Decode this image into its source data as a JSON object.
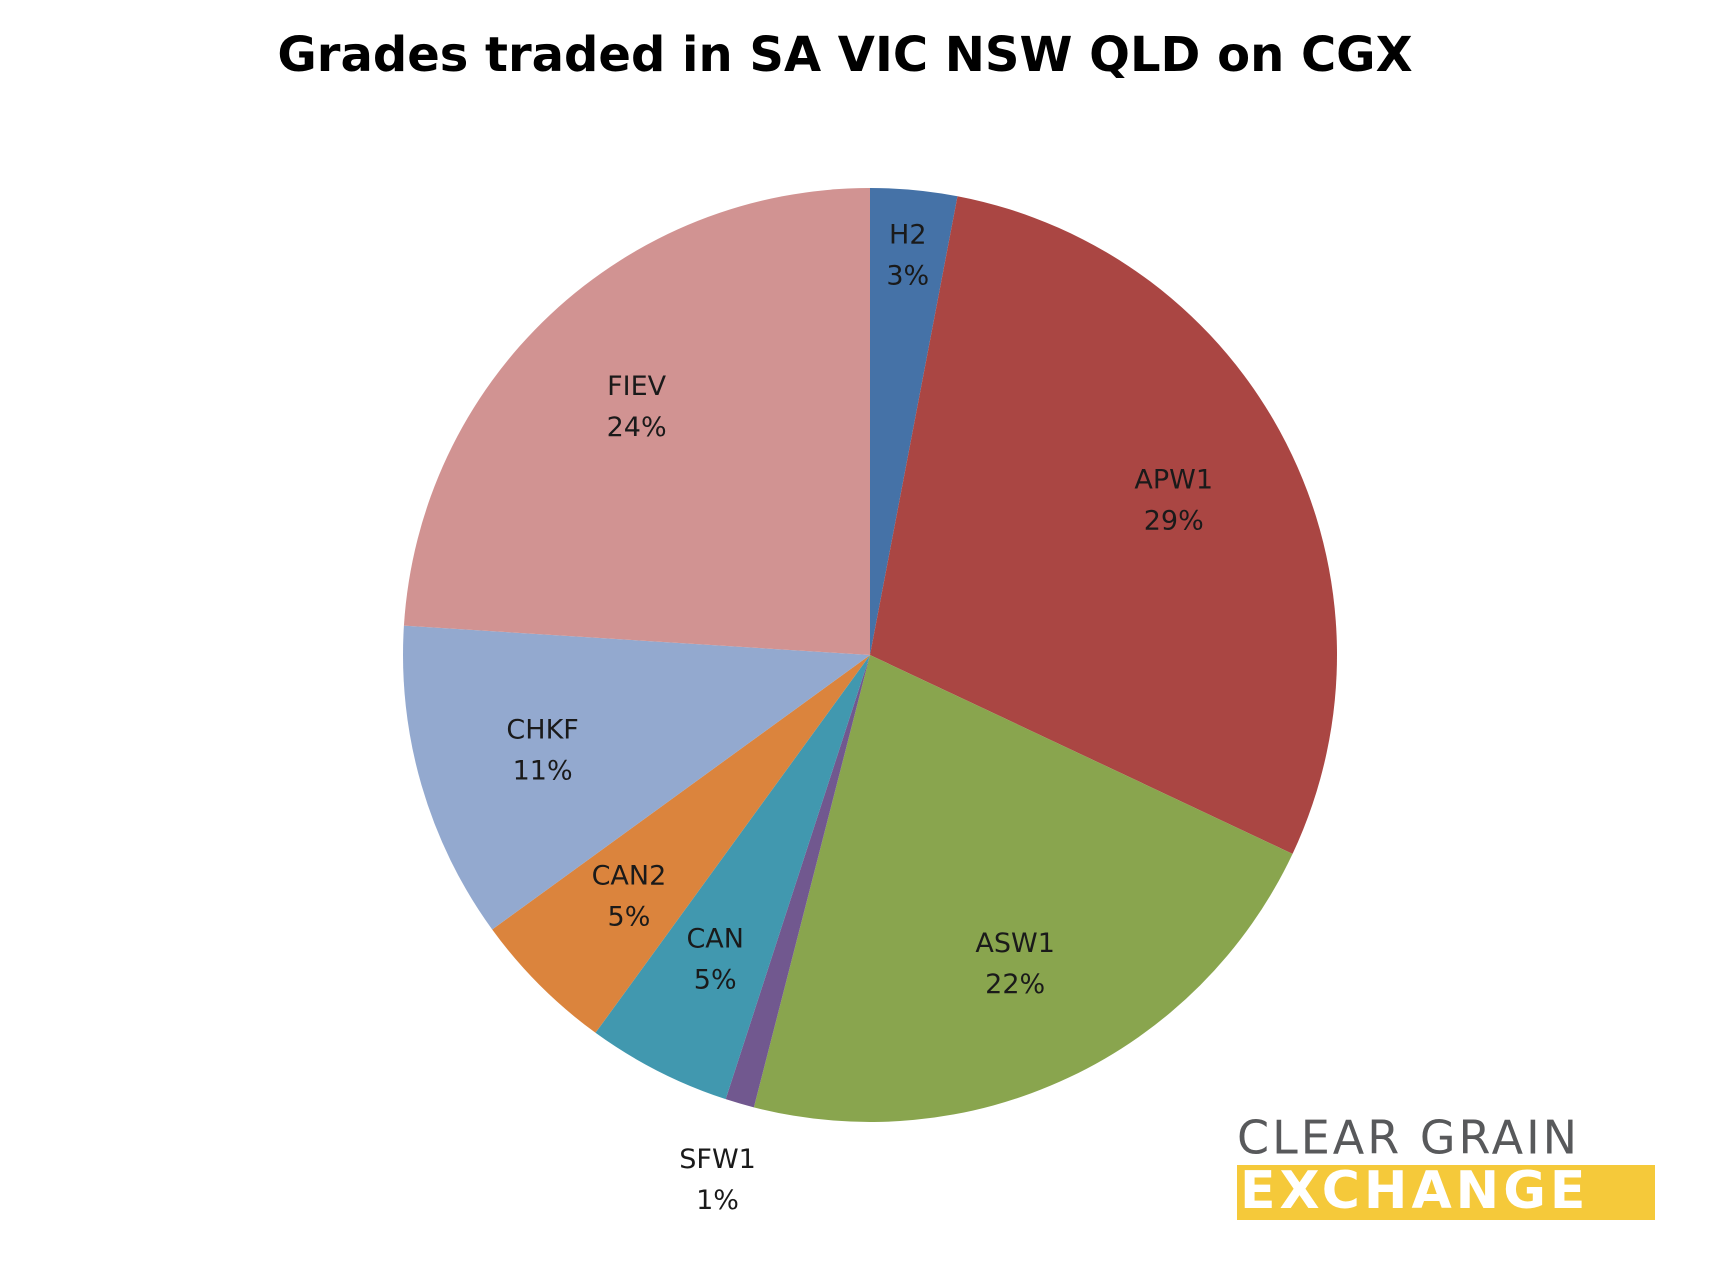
{
  "chart_data": {
    "type": "pie",
    "title": "Grades traded in SA VIC NSW QLD on CGX",
    "categories": [
      "H2",
      "APW1",
      "ASW1",
      "SFW1",
      "CAN",
      "CAN2",
      "CHKF",
      "FIEV"
    ],
    "values": [
      3,
      29,
      22,
      1,
      5,
      5,
      11,
      24
    ],
    "value_labels": [
      "3%",
      "29%",
      "22%",
      "1%",
      "5%",
      "5%",
      "11%",
      "24%"
    ],
    "colors": [
      "#4572a7",
      "#aa4643",
      "#89a54e",
      "#71588f",
      "#4198af",
      "#db843d",
      "#93a9cf",
      "#d19392"
    ]
  },
  "logo": {
    "line1": "CLEAR GRAIN",
    "line2": "EXCHANGE"
  }
}
